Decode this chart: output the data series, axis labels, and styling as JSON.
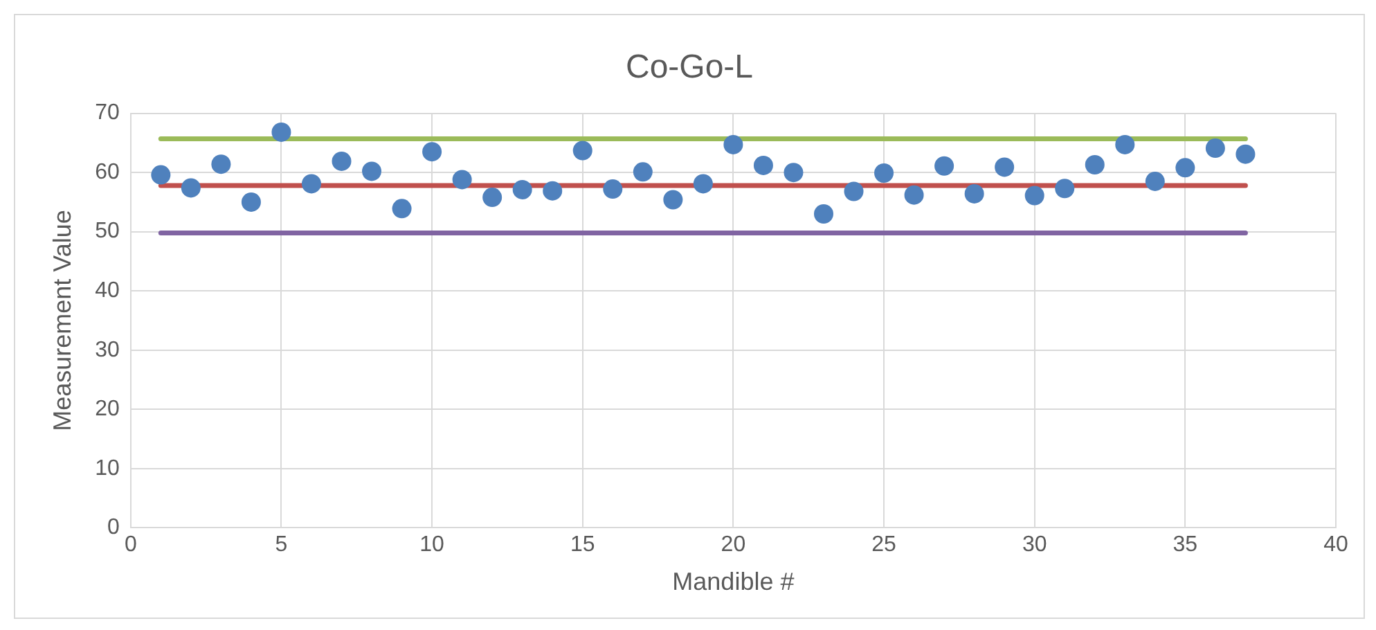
{
  "chart_data": {
    "type": "scatter",
    "title": "Co-Go-L",
    "xlabel": "Mandible #",
    "ylabel": "Measurement Value",
    "xlim": [
      0,
      40
    ],
    "xticks": [
      0,
      5,
      10,
      15,
      20,
      25,
      30,
      35,
      40
    ],
    "ylim": [
      0,
      70
    ],
    "yticks": [
      0,
      10,
      20,
      30,
      40,
      50,
      60,
      70
    ],
    "grid": true,
    "marker": "circle",
    "series": [
      {
        "color": "#4f81bd",
        "x": [
          1,
          2,
          3,
          4,
          5,
          6,
          7,
          8,
          9,
          10,
          11,
          12,
          13,
          14,
          15,
          16,
          17,
          18,
          19,
          20,
          21,
          22,
          23,
          24,
          25,
          26,
          27,
          28,
          29,
          30,
          31,
          32,
          33,
          34,
          35,
          36,
          37
        ],
        "values": [
          59.6,
          57.4,
          61.4,
          55,
          66.8,
          58.1,
          61.9,
          60.2,
          53.9,
          63.5,
          58.8,
          55.8,
          57.1,
          56.9,
          63.7,
          57.2,
          60.1,
          55.4,
          58.1,
          64.7,
          61.2,
          60,
          53,
          56.8,
          59.9,
          56.2,
          61.1,
          56.4,
          60.9,
          56.1,
          57.3,
          61.3,
          64.7,
          58.5,
          60.8,
          64.1,
          63.1
        ]
      },
      {
        "type": "line",
        "color": "#9bbb59",
        "marker": "none",
        "x": [
          1,
          37
        ],
        "values": [
          65.7,
          65.7
        ]
      },
      {
        "type": "line",
        "color": "#c0504d",
        "marker": "none",
        "x": [
          1,
          37
        ],
        "values": [
          57.8,
          57.8
        ]
      },
      {
        "type": "line",
        "color": "#8064a2",
        "marker": "none",
        "x": [
          1,
          37
        ],
        "values": [
          49.8,
          49.8
        ]
      }
    ]
  }
}
